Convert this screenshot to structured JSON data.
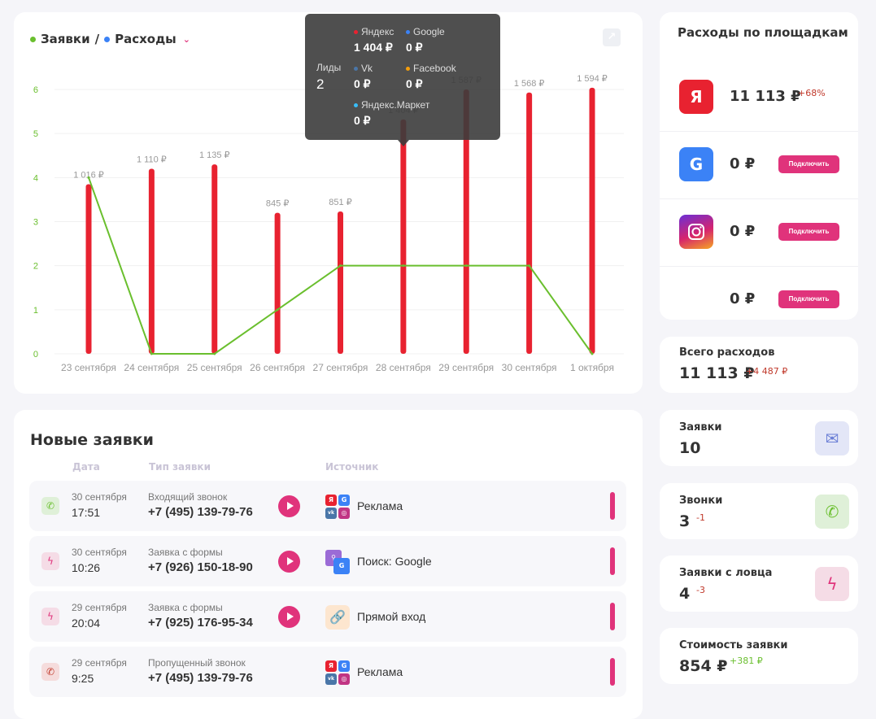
{
  "chart": {
    "legend_leads": "Заявки",
    "legend_sep": "/",
    "legend_spend": "Расходы",
    "colors": {
      "leads": "#6abf2e",
      "spend": "#e82230",
      "spend_legend": "#3b82f6"
    }
  },
  "chart_data": {
    "type": "bar",
    "categories": [
      "23 сентября",
      "24 сентября",
      "25 сентября",
      "26 сентября",
      "27 сентября",
      "28 сентября",
      "29 сентября",
      "30 сентября",
      "1 октября"
    ],
    "y_ticks": [
      "0",
      "1",
      "2",
      "3",
      "4",
      "5",
      "6"
    ],
    "ylim": [
      0,
      6
    ],
    "series": [
      {
        "name": "Расходы",
        "type": "bar",
        "values": [
          3.85,
          4.2,
          4.3,
          3.2,
          3.23,
          5.32,
          6.0,
          5.93,
          6.04
        ]
      },
      {
        "name": "Заявки",
        "type": "line",
        "values": [
          4,
          0,
          0,
          1,
          2,
          2,
          2,
          2,
          0
        ]
      }
    ],
    "bar_labels": [
      "1 016 ₽",
      "1 110 ₽",
      "1 135 ₽",
      "845 ₽",
      "851 ₽",
      "1 404 ₽",
      "1 587 ₽",
      "1 568 ₽",
      "1 594 ₽"
    ]
  },
  "tooltip": {
    "leads_label": "Лиды",
    "leads_value": "2",
    "items": [
      {
        "name": "Яндекс",
        "value": "1 404 ₽",
        "color": "#e82230"
      },
      {
        "name": "Google",
        "value": "0 ₽",
        "color": "#3b82f6"
      },
      {
        "name": "Vk",
        "value": "0 ₽",
        "color": "#4a76a8"
      },
      {
        "name": "Facebook",
        "value": "0 ₽",
        "color": "#f59e0b"
      },
      {
        "name": "Яндекс.Маркет",
        "value": "0 ₽",
        "color": "#38bdf8"
      }
    ]
  },
  "leads": {
    "title": "Новые заявки",
    "col_date": "Дата",
    "col_type": "Тип заявки",
    "col_source": "Источник",
    "rows": [
      {
        "date": "30 сентября",
        "time": "17:51",
        "type": "Входящий звонок",
        "phone": "+7 (495) 139-79-76",
        "source": "Реклама",
        "icon": "phone-icon",
        "color": "#dff0d8"
      },
      {
        "date": "30 сентября",
        "time": "10:26",
        "type": "Заявка с формы",
        "phone": "+7 (926) 150-18-90",
        "source": "Поиск: Google",
        "icon": "lightning-icon",
        "color": "#f5dce6"
      },
      {
        "date": "29 сентября",
        "time": "20:04",
        "type": "Заявка с формы",
        "phone": "+7 (925) 176-95-34",
        "source": "Прямой вход",
        "icon": "lightning-icon",
        "color": "#f5dce6"
      },
      {
        "date": "29 сентября",
        "time": "9:25",
        "type": "Пропущенный звонок",
        "phone": "+7 (495) 139-79-76",
        "source": "Реклама",
        "icon": "missed-call-icon",
        "color": "#f5dcdc"
      }
    ]
  },
  "platforms": {
    "title": "Расходы по площадкам",
    "yandex": {
      "letter": "Я",
      "value": "11 113 ₽",
      "delta": "+68%"
    },
    "google": {
      "letter": "G",
      "value": "0 ₽",
      "button": "Подключить"
    },
    "instagram": {
      "value": "0 ₽",
      "button": "Подключить"
    },
    "other": {
      "value": "0 ₽",
      "button": "Подключить"
    }
  },
  "total": {
    "label": "Всего расходов",
    "value": "11 113 ₽",
    "delta": "+4 487 ₽"
  },
  "stats": {
    "requests": {
      "label": "Заявки",
      "value": "10"
    },
    "calls": {
      "label": "Звонки",
      "value": "3",
      "delta": "-1"
    },
    "catcher": {
      "label": "Заявки с ловца",
      "value": "4",
      "delta": "-3"
    },
    "cost": {
      "label": "Стоимость заявки",
      "value": "854 ₽",
      "delta": "+381 ₽"
    }
  }
}
